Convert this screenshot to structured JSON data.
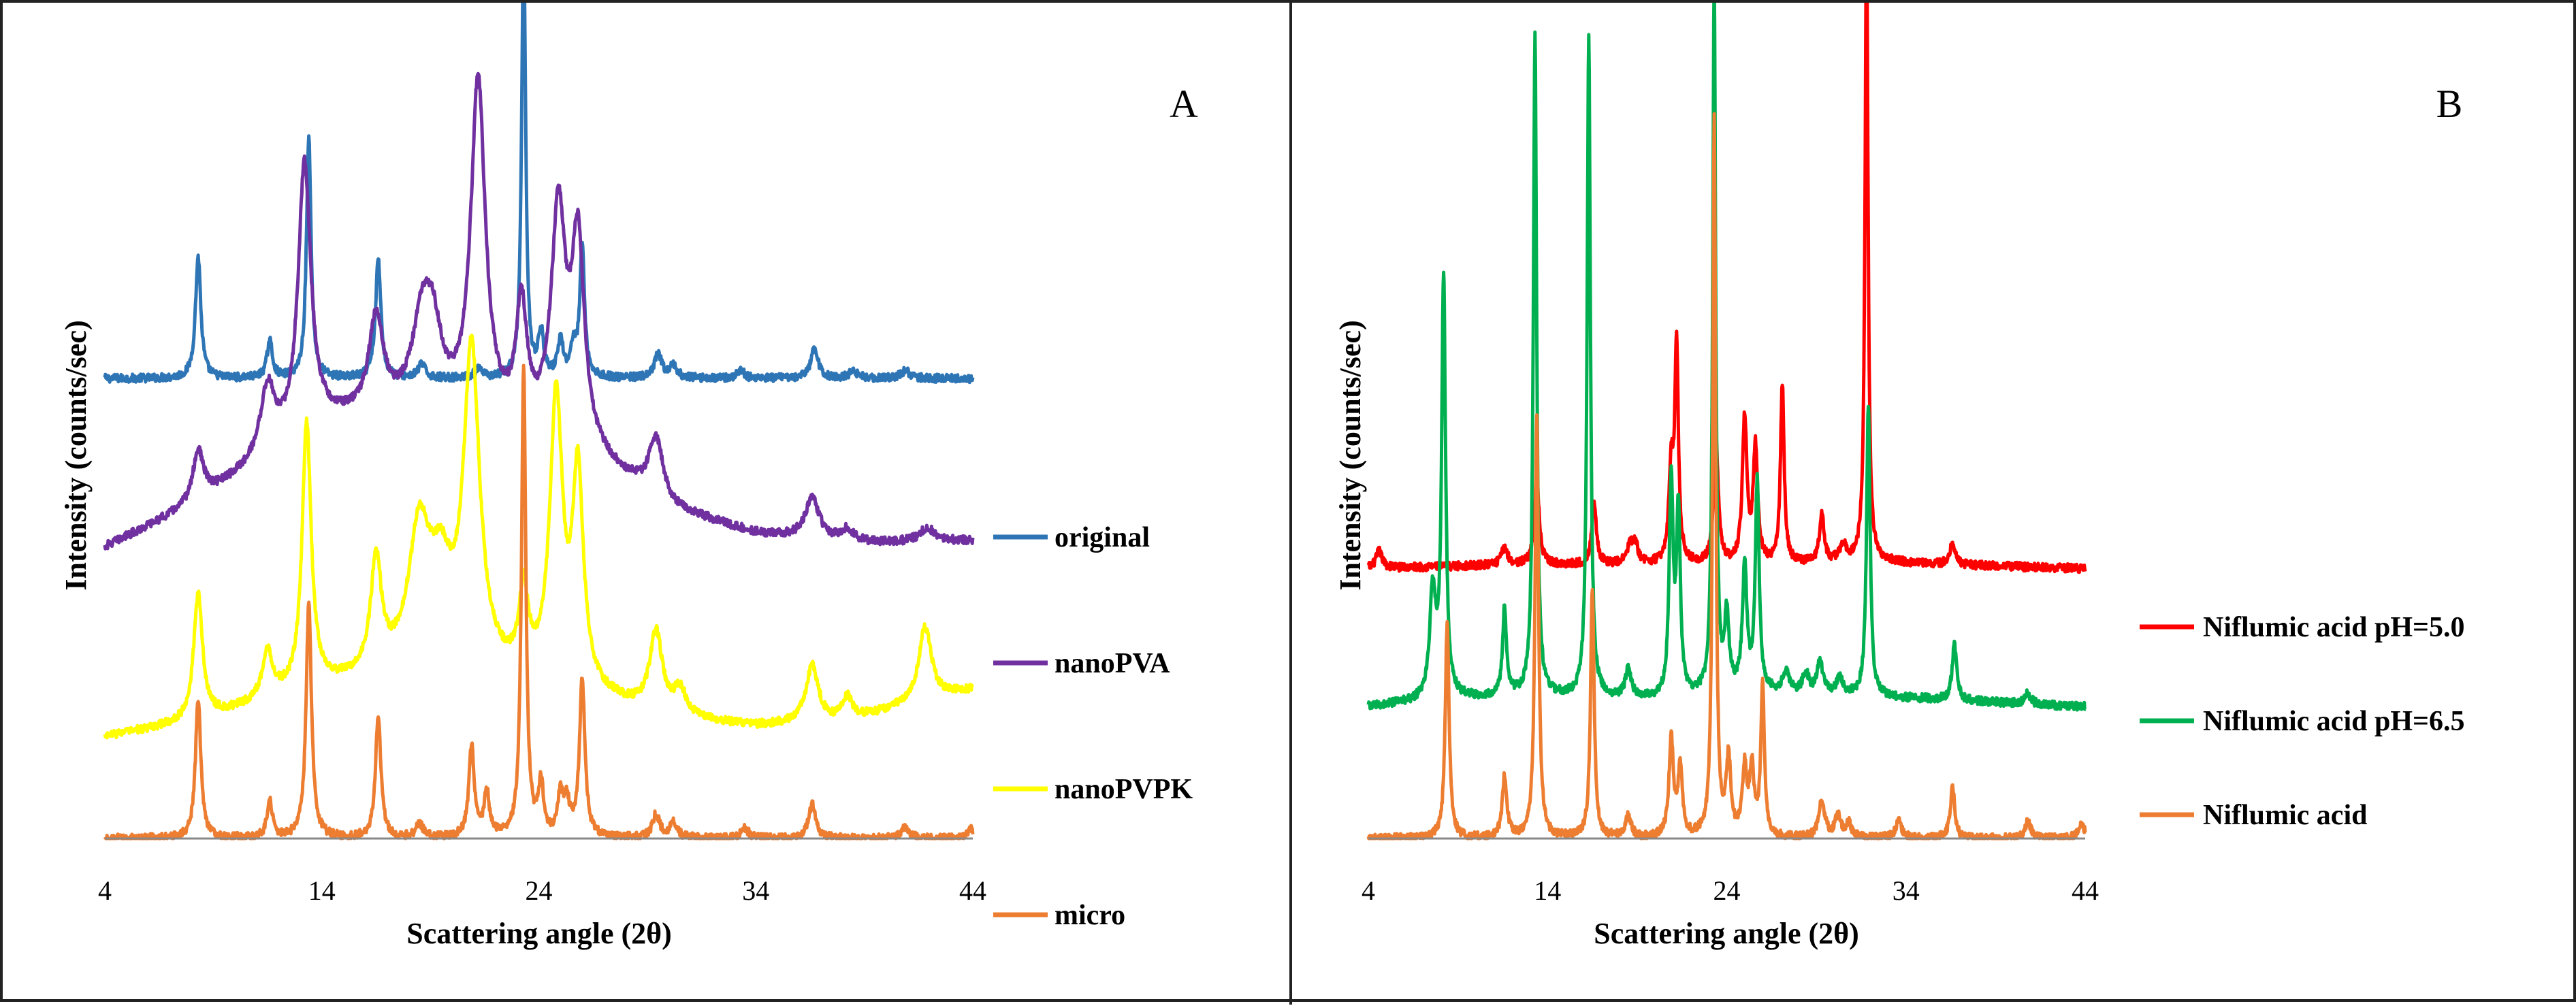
{
  "chart_data": [
    {
      "type": "line",
      "panel_label": "A",
      "xlabel": "Scattering angle (2θ)",
      "ylabel": "Intensity (counts/sec)",
      "xlim": [
        4,
        44
      ],
      "xticks": [
        "4",
        "14",
        "24",
        "34",
        "44"
      ],
      "grid": false,
      "legend_position": "right",
      "series": [
        {
          "name": "original",
          "color": "#2E75B6",
          "baseline": 680,
          "background": [
            [
              4,
              0
            ],
            [
              44,
              0
            ]
          ],
          "peaks": [
            [
              8.3,
              180,
              0.15
            ],
            [
              11.6,
              55,
              0.15
            ],
            [
              13.4,
              355,
              0.13
            ],
            [
              16.6,
              175,
              0.15
            ],
            [
              18.6,
              20,
              0.2
            ],
            [
              21.2,
              12,
              0.2
            ],
            [
              23.3,
              650,
              0.11
            ],
            [
              24.1,
              65,
              0.15
            ],
            [
              25.0,
              55,
              0.15
            ],
            [
              25.6,
              45,
              0.15
            ],
            [
              26.0,
              195,
              0.13
            ],
            [
              29.5,
              35,
              0.2
            ],
            [
              30.2,
              18,
              0.2
            ],
            [
              33.3,
              12,
              0.2
            ],
            [
              36.7,
              45,
              0.2
            ],
            [
              38.5,
              10,
              0.25
            ],
            [
              40.9,
              12,
              0.25
            ]
          ]
        },
        {
          "name": "nanoPVA",
          "color": "#7030A0",
          "baseline": 430,
          "background": [
            [
              4,
              0
            ],
            [
              8,
              60
            ],
            [
              14,
              180
            ],
            [
              18,
              200
            ],
            [
              22,
              175
            ],
            [
              26,
              140
            ],
            [
              30,
              55
            ],
            [
              34,
              20
            ],
            [
              38,
              5
            ],
            [
              44,
              10
            ]
          ],
          "peaks": [
            [
              8.3,
              75,
              0.3
            ],
            [
              11.5,
              100,
              0.4
            ],
            [
              13.2,
              400,
              0.35
            ],
            [
              16.5,
              140,
              0.4
            ],
            [
              18.6,
              110,
              0.5
            ],
            [
              19.1,
              110,
              0.5
            ],
            [
              21.2,
              500,
              0.4
            ],
            [
              23.2,
              175,
              0.3
            ],
            [
              24.9,
              330,
              0.4
            ],
            [
              25.8,
              290,
              0.35
            ],
            [
              29.4,
              90,
              0.4
            ],
            [
              36.6,
              60,
              0.4
            ],
            [
              38.2,
              20,
              0.4
            ],
            [
              41.9,
              20,
              0.4
            ]
          ]
        },
        {
          "name": "nanoPVPK",
          "color": "#FFFF00",
          "baseline": 150,
          "background": [
            [
              4,
              0
            ],
            [
              8,
              20
            ],
            [
              14,
              70
            ],
            [
              18,
              90
            ],
            [
              22,
              80
            ],
            [
              26,
              60
            ],
            [
              30,
              25
            ],
            [
              34,
              15
            ],
            [
              38,
              20
            ],
            [
              44,
              70
            ]
          ],
          "peaks": [
            [
              8.3,
              185,
              0.25
            ],
            [
              11.5,
              70,
              0.3
            ],
            [
              13.3,
              395,
              0.25
            ],
            [
              16.5,
              165,
              0.3
            ],
            [
              18.5,
              200,
              0.6
            ],
            [
              19.5,
              120,
              0.6
            ],
            [
              20.9,
              470,
              0.45
            ],
            [
              23.3,
              120,
              0.25
            ],
            [
              24.8,
              420,
              0.35
            ],
            [
              25.8,
              310,
              0.3
            ],
            [
              29.4,
              120,
              0.35
            ],
            [
              30.5,
              40,
              0.35
            ],
            [
              36.6,
              85,
              0.35
            ],
            [
              38.2,
              35,
              0.3
            ],
            [
              41.8,
              110,
              0.35
            ]
          ]
        },
        {
          "name": "micro",
          "color": "#ED7D31",
          "baseline": 0,
          "background": [
            [
              4,
              0
            ],
            [
              44,
              0
            ]
          ],
          "peaks": [
            [
              8.3,
              205,
              0.15
            ],
            [
              11.6,
              55,
              0.15
            ],
            [
              13.4,
              345,
              0.15
            ],
            [
              16.6,
              180,
              0.15
            ],
            [
              18.5,
              20,
              0.2
            ],
            [
              20.9,
              135,
              0.15
            ],
            [
              21.6,
              65,
              0.15
            ],
            [
              23.3,
              695,
              0.12
            ],
            [
              24.1,
              75,
              0.15
            ],
            [
              25.0,
              60,
              0.15
            ],
            [
              25.3,
              45,
              0.15
            ],
            [
              26.0,
              235,
              0.15
            ],
            [
              29.4,
              35,
              0.2
            ],
            [
              30.2,
              22,
              0.2
            ],
            [
              33.5,
              15,
              0.2
            ],
            [
              36.6,
              50,
              0.2
            ],
            [
              40.9,
              18,
              0.2
            ],
            [
              43.9,
              15,
              0.2
            ]
          ]
        }
      ]
    },
    {
      "type": "line",
      "panel_label": "B",
      "xlabel": "Scattering angle (2θ)",
      "ylabel": "Intensity (counts/sec)",
      "xlim": [
        4,
        44
      ],
      "xticks": [
        "4",
        "14",
        "24",
        "34",
        "44"
      ],
      "grid": false,
      "legend_position": "right",
      "series": [
        {
          "name": "Niflumic acid pH=5.0",
          "color": "#FF0000",
          "baseline": 390,
          "background": [
            [
              4,
              0
            ],
            [
              12,
              5
            ],
            [
              20,
              5
            ],
            [
              26,
              5
            ],
            [
              32,
              10
            ],
            [
              36,
              5
            ],
            [
              44,
              0
            ]
          ],
          "peaks": [
            [
              4.6,
              25,
              0.2
            ],
            [
              11.6,
              25,
              0.2
            ],
            [
              13.4,
              130,
              0.15
            ],
            [
              16.6,
              90,
              0.15
            ],
            [
              18.6,
              25,
              0.2
            ],
            [
              18.9,
              25,
              0.2
            ],
            [
              20.9,
              130,
              0.15
            ],
            [
              21.2,
              310,
              0.12
            ],
            [
              23.4,
              180,
              0.15
            ],
            [
              25.0,
              210,
              0.15
            ],
            [
              25.6,
              165,
              0.15
            ],
            [
              27.1,
              260,
              0.12
            ],
            [
              29.3,
              70,
              0.15
            ],
            [
              30.5,
              25,
              0.2
            ],
            [
              31.8,
              915,
              0.1
            ],
            [
              36.6,
              30,
              0.2
            ]
          ]
        },
        {
          "name": "Niflumic acid pH=6.5",
          "color": "#00B050",
          "baseline": 190,
          "background": [
            [
              4,
              0
            ],
            [
              8,
              10
            ],
            [
              12,
              15
            ],
            [
              20,
              10
            ],
            [
              26,
              20
            ],
            [
              32,
              15
            ],
            [
              36,
              10
            ],
            [
              44,
              0
            ]
          ],
          "peaks": [
            [
              7.6,
              155,
              0.2
            ],
            [
              8.2,
              605,
              0.13
            ],
            [
              11.6,
              125,
              0.13
            ],
            [
              13.3,
              955,
              0.11
            ],
            [
              16.3,
              950,
              0.11
            ],
            [
              18.5,
              40,
              0.2
            ],
            [
              20.9,
              310,
              0.13
            ],
            [
              21.3,
              260,
              0.13
            ],
            [
              23.3,
              1025,
              0.1
            ],
            [
              24.0,
              105,
              0.15
            ],
            [
              25.0,
              180,
              0.15
            ],
            [
              25.7,
              300,
              0.13
            ],
            [
              27.3,
              30,
              0.2
            ],
            [
              28.4,
              30,
              0.2
            ],
            [
              29.2,
              45,
              0.2
            ],
            [
              30.3,
              25,
              0.2
            ],
            [
              31.9,
              420,
              0.12
            ],
            [
              36.7,
              80,
              0.15
            ],
            [
              40.8,
              15,
              0.2
            ]
          ]
        },
        {
          "name": "Niflumic acid",
          "color": "#ED7D31",
          "baseline": 0,
          "background": [
            [
              4,
              0
            ],
            [
              44,
              0
            ]
          ],
          "peaks": [
            [
              8.4,
              310,
              0.13
            ],
            [
              11.6,
              90,
              0.15
            ],
            [
              13.4,
              605,
              0.12
            ],
            [
              16.5,
              360,
              0.12
            ],
            [
              18.5,
              30,
              0.2
            ],
            [
              20.9,
              140,
              0.15
            ],
            [
              21.4,
              95,
              0.15
            ],
            [
              23.3,
              1035,
              0.1
            ],
            [
              24.1,
              110,
              0.15
            ],
            [
              25.0,
              95,
              0.15
            ],
            [
              25.4,
              95,
              0.15
            ],
            [
              26.0,
              215,
              0.12
            ],
            [
              29.3,
              55,
              0.2
            ],
            [
              30.2,
              30,
              0.2
            ],
            [
              30.8,
              20,
              0.2
            ],
            [
              33.6,
              25,
              0.2
            ],
            [
              36.6,
              75,
              0.15
            ],
            [
              40.8,
              25,
              0.2
            ],
            [
              43.8,
              20,
              0.2
            ]
          ]
        }
      ]
    }
  ]
}
